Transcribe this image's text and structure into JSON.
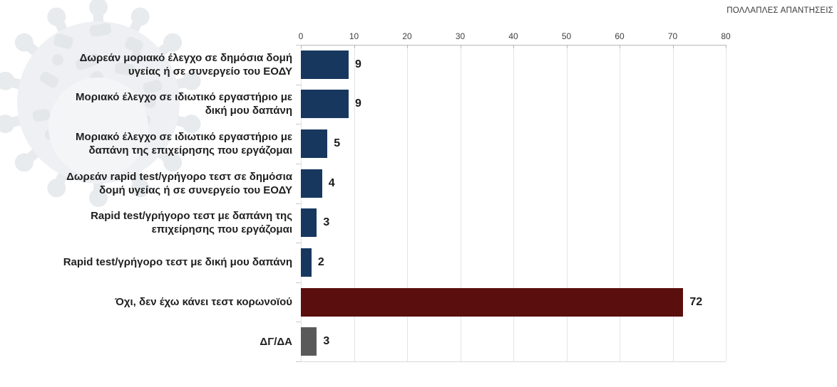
{
  "header": {
    "multiple_answers_note": "ΠΟΛΛΑΠΛΕΣ ΑΠΑΝΤΗΣΕΙΣ"
  },
  "chart_data": {
    "type": "bar",
    "orientation": "horizontal",
    "title": "",
    "annotation": "ΠΟΛΛΑΠΛΕΣ ΑΠΑΝΤΗΣΕΙΣ",
    "categories": [
      "Δωρεάν μοριακό έλεγχο σε δημόσια δομή υγείας ή σε συνεργείο του ΕΟΔΥ",
      "Μοριακό έλεγχο σε ιδιωτικό εργαστήριο με δική μου δαπάνη",
      "Μοριακό έλεγχο σε ιδιωτικό εργαστήριο με δαπάνη της επιχείρησης που εργάζομαι",
      "Δωρεάν rapid test/γρήγορο τεστ σε δημόσια δομή υγείας ή σε συνεργείο του ΕΟΔΥ",
      "Rapid test/γρήγορο τεστ με δαπάνη της επιχείρησης που εργάζομαι",
      "Rapid test/γρήγορο τεστ με δική μου δαπάνη",
      "Όχι, δεν έχω κάνει τεστ κορωνοϊού",
      "ΔΓ/ΔΑ"
    ],
    "values": [
      9,
      9,
      5,
      4,
      3,
      2,
      72,
      3
    ],
    "bar_colors": [
      "#17375E",
      "#17375E",
      "#17375E",
      "#17375E",
      "#17375E",
      "#17375E",
      "#5B0E0E",
      "#595959"
    ],
    "xlim": [
      0,
      80
    ],
    "x_ticks": [
      0,
      10,
      20,
      30,
      40,
      50,
      60,
      70,
      80
    ],
    "axis_position": "top",
    "grid": true,
    "value_labels": true,
    "legend": "none",
    "watermark": "coronavirus-image"
  },
  "colors": {
    "bar_navy": "#17375E",
    "bar_maroon": "#5B0E0E",
    "bar_gray": "#595959",
    "gridline": "#E4E4E4",
    "axis_line": "#B8B8B8",
    "label_text": "#1F1F1F",
    "tick_text": "#3F3F3F"
  }
}
